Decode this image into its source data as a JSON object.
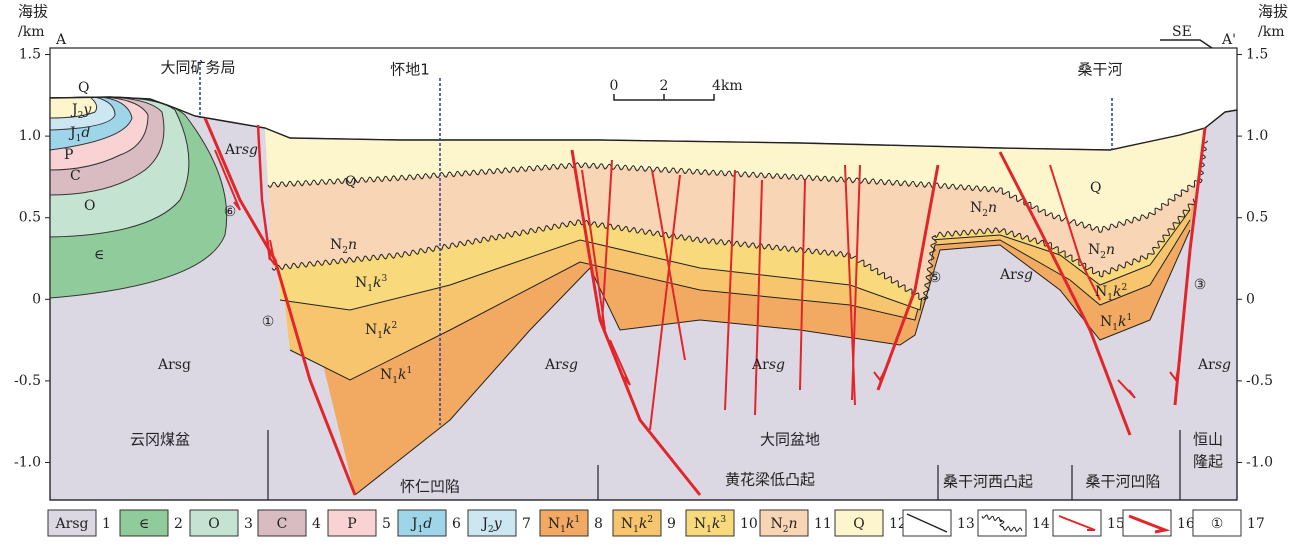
{
  "axis": {
    "title": "海拔",
    "unit": "/km",
    "ylim": [
      -1.23,
      1.54
    ],
    "yticks": [
      1.5,
      {
        "value": 1.0,
        "label": "1.0"
      },
      0.5,
      0,
      -0.5,
      {
        "value": -1.0,
        "label": "-1.0"
      }
    ]
  },
  "ends": {
    "left": "A",
    "right": "A'",
    "direction": "SE"
  },
  "scale_bar": [
    "0",
    "2",
    "4km"
  ],
  "places": [
    "大同矿务局",
    "怀地1",
    "桑干河"
  ],
  "section_labels": [
    [
      {
        "text": "Q"
      }
    ],
    [
      {
        "text": "J"
      },
      {
        "text": "2",
        "sub": true
      },
      {
        "text": "y",
        "italic": true
      }
    ],
    [
      {
        "text": "J"
      },
      {
        "text": "1",
        "sub": true
      },
      {
        "text": "d",
        "italic": true
      }
    ],
    [
      {
        "text": "P"
      }
    ],
    [
      {
        "text": "C"
      }
    ],
    [
      {
        "text": "O"
      }
    ],
    [
      {
        "text": "∈"
      }
    ],
    [
      {
        "text": "Ar"
      },
      {
        "text": "sg",
        "italic": true
      }
    ],
    [
      {
        "text": "Arsg"
      }
    ],
    [
      {
        "text": "Q"
      }
    ],
    [
      {
        "text": "N"
      },
      {
        "text": "2",
        "sub": true
      },
      {
        "text": "n",
        "italic": true
      }
    ],
    [
      {
        "text": "N"
      },
      {
        "text": "1",
        "sub": true
      },
      {
        "text": "k",
        "italic": true
      },
      {
        "text": "3",
        "sup": true
      }
    ],
    [
      {
        "text": "N"
      },
      {
        "text": "1",
        "sub": true
      },
      {
        "text": "k",
        "italic": true
      },
      {
        "text": "2",
        "sup": true
      }
    ],
    [
      {
        "text": "N"
      },
      {
        "text": "1",
        "sub": true
      },
      {
        "text": "k",
        "italic": true
      },
      {
        "text": "1",
        "sup": true
      }
    ],
    [
      {
        "text": "Ar"
      },
      {
        "text": "sg",
        "italic": true
      }
    ],
    [
      {
        "text": "Ar"
      },
      {
        "text": "sg",
        "italic": true
      }
    ],
    [
      {
        "text": "N"
      },
      {
        "text": "2",
        "sub": true
      },
      {
        "text": "n",
        "italic": true
      }
    ],
    [
      {
        "text": "Ar"
      },
      {
        "text": "sg",
        "italic": true
      }
    ],
    [
      {
        "text": "Q"
      }
    ],
    [
      {
        "text": "N"
      },
      {
        "text": "2",
        "sub": true
      },
      {
        "text": "n",
        "italic": true
      }
    ],
    [
      {
        "text": "N"
      },
      {
        "text": "1",
        "sub": true
      },
      {
        "text": "k",
        "italic": true
      },
      {
        "text": "2",
        "sup": true
      }
    ],
    [
      {
        "text": "N"
      },
      {
        "text": "1",
        "sub": true
      },
      {
        "text": "k",
        "italic": true
      },
      {
        "text": "1",
        "sup": true
      }
    ],
    [
      {
        "text": "Ar"
      },
      {
        "text": "sg",
        "italic": true
      }
    ]
  ],
  "faults": [
    "⑥",
    "①",
    "⑤",
    "③"
  ],
  "regions": [
    "云冈煤盆",
    "大同盆地",
    "怀仁凹陷",
    "黄花梁低凸起",
    "桑干河西凸起",
    "桑干河凹陷",
    [
      "恒山",
      "隆起"
    ]
  ],
  "legend": [
    {
      "label": [
        {
          "text": "Arsg"
        }
      ],
      "number": "1",
      "color": "#dcd8e3"
    },
    {
      "label": [
        {
          "text": "∈"
        }
      ],
      "number": "2",
      "color": "#8fcb9b"
    },
    {
      "label": [
        {
          "text": "O"
        }
      ],
      "number": "3",
      "color": "#c4e3d1"
    },
    {
      "label": [
        {
          "text": "C"
        }
      ],
      "number": "4",
      "color": "#d8bcc1"
    },
    {
      "label": [
        {
          "text": "P"
        }
      ],
      "number": "5",
      "color": "#f9d3d4"
    },
    {
      "label": [
        {
          "text": "J"
        },
        {
          "text": "1",
          "sub": true
        },
        {
          "text": "d",
          "italic": true
        }
      ],
      "number": "6",
      "color": "#9fd5e8"
    },
    {
      "label": [
        {
          "text": "J"
        },
        {
          "text": "2",
          "sub": true
        },
        {
          "text": "y",
          "italic": true
        }
      ],
      "number": "7",
      "color": "#cde7f2"
    },
    {
      "label": [
        {
          "text": "N"
        },
        {
          "text": "1",
          "sub": true
        },
        {
          "text": "k",
          "italic": true
        },
        {
          "text": "1",
          "sup": true
        }
      ],
      "number": "8",
      "color": "#f2aa62"
    },
    {
      "label": [
        {
          "text": "N"
        },
        {
          "text": "1",
          "sub": true
        },
        {
          "text": "k",
          "italic": true
        },
        {
          "text": "2",
          "sup": true
        }
      ],
      "number": "9",
      "color": "#f6c56e"
    },
    {
      "label": [
        {
          "text": "N"
        },
        {
          "text": "1",
          "sub": true
        },
        {
          "text": "k",
          "italic": true
        },
        {
          "text": "3",
          "sup": true
        }
      ],
      "number": "10",
      "color": "#f8da7c"
    },
    {
      "label": [
        {
          "text": "N"
        },
        {
          "text": "2",
          "sub": true
        },
        {
          "text": "n",
          "italic": true
        }
      ],
      "number": "11",
      "color": "#f8d5b4"
    },
    {
      "label": [
        {
          "text": "Q"
        }
      ],
      "number": "12",
      "color": "#fdf5cc"
    },
    {
      "number": "13",
      "color": "#ffffff"
    },
    {
      "number": "14",
      "color": "#ffffff"
    },
    {
      "number": "15",
      "color": "#ffffff"
    },
    {
      "number": "16",
      "color": "#ffffff"
    },
    {
      "label": [
        {
          "text": "①"
        }
      ],
      "number": "17",
      "color": "#ffffff"
    }
  ]
}
